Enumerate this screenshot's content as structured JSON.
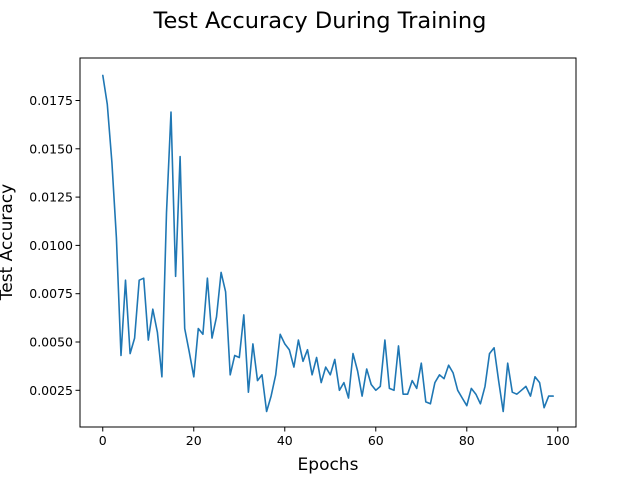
{
  "chart_data": {
    "type": "line",
    "title": "Test Accuracy During Training",
    "xlabel": "Epochs",
    "ylabel": "Test Accuracy",
    "xlim": [
      -5,
      104
    ],
    "ylim": [
      0.0006,
      0.0197
    ],
    "xticks": [
      0,
      20,
      40,
      60,
      80,
      100
    ],
    "yticks": [
      0.0025,
      0.005,
      0.0075,
      0.01,
      0.0125,
      0.015,
      0.0175
    ],
    "xtick_labels": [
      "0",
      "20",
      "40",
      "60",
      "80",
      "100"
    ],
    "ytick_labels": [
      "0.0025",
      "0.0050",
      "0.0075",
      "0.0100",
      "0.0125",
      "0.0150",
      "0.0175"
    ],
    "grid": false,
    "color": "#1f77b4",
    "series": [
      {
        "x": [
          0,
          1,
          2,
          3,
          4,
          5,
          6,
          7,
          8,
          9,
          10,
          11,
          12,
          13,
          14,
          15,
          16,
          17,
          18,
          19,
          20,
          21,
          22,
          23,
          24,
          25,
          26,
          27,
          28,
          29,
          30,
          31,
          32,
          33,
          34,
          35,
          36,
          37,
          38,
          39,
          40,
          41,
          42,
          43,
          44,
          45,
          46,
          47,
          48,
          49,
          50,
          51,
          52,
          53,
          54,
          55,
          56,
          57,
          58,
          59,
          60,
          61,
          62,
          63,
          64,
          65,
          66,
          67,
          68,
          69,
          70,
          71,
          72,
          73,
          74,
          75,
          76,
          77,
          78,
          79,
          80,
          81,
          82,
          83,
          84,
          85,
          86,
          87,
          88,
          89,
          90,
          91,
          92,
          93,
          94,
          95,
          96,
          97,
          98,
          99
        ],
        "values": [
          0.0188,
          0.0173,
          0.0143,
          0.0104,
          0.0043,
          0.0082,
          0.0044,
          0.0052,
          0.0082,
          0.0083,
          0.0051,
          0.0067,
          0.0055,
          0.0032,
          0.0117,
          0.0169,
          0.0084,
          0.0146,
          0.0057,
          0.0045,
          0.0032,
          0.0057,
          0.0054,
          0.0083,
          0.0052,
          0.0063,
          0.0086,
          0.0076,
          0.0033,
          0.0043,
          0.0042,
          0.0064,
          0.0024,
          0.0049,
          0.003,
          0.0033,
          0.0014,
          0.0022,
          0.0033,
          0.0054,
          0.0049,
          0.0046,
          0.0037,
          0.0051,
          0.004,
          0.0046,
          0.0033,
          0.0042,
          0.0029,
          0.0037,
          0.0033,
          0.0041,
          0.0025,
          0.0029,
          0.0021,
          0.0044,
          0.0035,
          0.0022,
          0.0036,
          0.0028,
          0.0025,
          0.0027,
          0.0051,
          0.0026,
          0.0025,
          0.0048,
          0.0023,
          0.0023,
          0.003,
          0.0026,
          0.0039,
          0.0019,
          0.0018,
          0.0029,
          0.0033,
          0.0031,
          0.0038,
          0.0034,
          0.0025,
          0.0021,
          0.0017,
          0.0026,
          0.0023,
          0.0018,
          0.0027,
          0.0044,
          0.0047,
          0.003,
          0.0014,
          0.0039,
          0.0024,
          0.0023,
          0.0025,
          0.0027,
          0.0022,
          0.0032,
          0.0029,
          0.0016,
          0.0022,
          0.0022
        ]
      }
    ]
  }
}
